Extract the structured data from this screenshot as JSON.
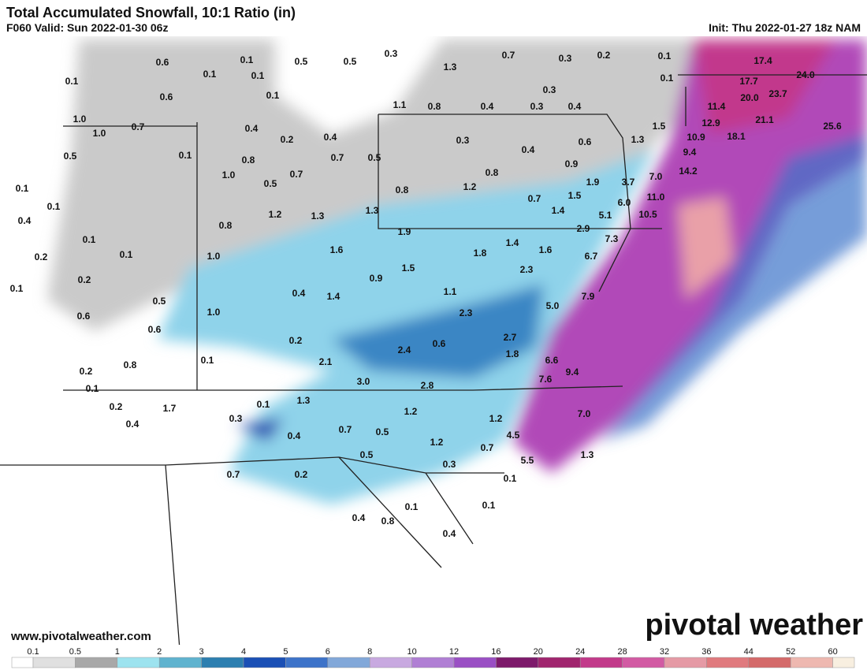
{
  "header": {
    "title": "Total Accumulated Snowfall, 10:1 Ratio (in)",
    "valid": "F060 Valid: Sun 2022-01-30 06z",
    "init": "Init: Thu 2022-01-27 18z NAM"
  },
  "map": {
    "values": [
      "0.6",
      "0.1",
      "0.5",
      "0.5",
      "0.3",
      "0.7",
      "0.3",
      "0.2",
      "0.1",
      "17.4",
      "0.1",
      "0.1",
      "0.1",
      "1.3",
      "0.1",
      "17.7",
      "24.0",
      "0.6",
      "0.1",
      "0.3",
      "20.0",
      "23.7",
      "1.0",
      "0.7",
      "1.0",
      "0.4",
      "1.1",
      "0.8",
      "0.4",
      "0.3",
      "0.4",
      "11.4",
      "0.2",
      "0.4",
      "0.3",
      "0.6",
      "1.5",
      "12.9",
      "21.1",
      "25.6",
      "0.5",
      "0.1",
      "0.8",
      "0.7",
      "0.5",
      "0.4",
      "1.3",
      "10.9",
      "18.1",
      "9.4",
      "1.0",
      "0.5",
      "0.7",
      "0.8",
      "0.9",
      "7.0",
      "14.2",
      "0.1",
      "1.2",
      "1.9",
      "3.7",
      "0.8",
      "1.5",
      "11.0",
      "0.1",
      "6.0",
      "0.7",
      "0.4",
      "1.2",
      "1.3",
      "1.3",
      "1.4",
      "5.1",
      "10.5",
      "0.8",
      "1.9",
      "2.9",
      "7.3",
      "0.1",
      "1.6",
      "1.8",
      "1.4",
      "1.6",
      "6.7",
      "0.2",
      "0.1",
      "1.0",
      "1.5",
      "2.3",
      "0.2",
      "0.9",
      "0.1",
      "0.4",
      "1.1",
      "7.9",
      "0.5",
      "1.4",
      "5.0",
      "0.6",
      "1.0",
      "2.3",
      "0.6",
      "0.2",
      "2.7",
      "0.6",
      "2.4",
      "1.8",
      "0.8",
      "0.1",
      "2.1",
      "6.6",
      "9.4",
      "0.2",
      "7.6",
      "3.0",
      "2.8",
      "0.1",
      "0.2",
      "1.7",
      "0.1",
      "1.3",
      "1.2",
      "7.0",
      "0.4",
      "0.3",
      "1.2",
      "0.7",
      "0.5",
      "0.4",
      "4.5",
      "1.2",
      "0.7",
      "0.5",
      "5.5",
      "1.3",
      "0.3",
      "0.7",
      "0.2",
      "0.1",
      "0.1",
      "0.1",
      "0.4",
      "0.8",
      "0.4"
    ]
  },
  "footer": {
    "url": "www.pivotalweather.com",
    "logo": "pivotal weather"
  },
  "legend": {
    "labels": [
      "0.1",
      "0.5",
      "1",
      "2",
      "3",
      "4",
      "5",
      "6",
      "8",
      "10",
      "12",
      "16",
      "20",
      "24",
      "28",
      "32",
      "36",
      "44",
      "52",
      "60"
    ],
    "colors": [
      "#ffffff",
      "#e0e0e0",
      "#a8a8a8",
      "#9de3ef",
      "#5fb3cf",
      "#2d7fb0",
      "#1a4fb5",
      "#3d73c9",
      "#82a8d9",
      "#c8a9e0",
      "#b07fd4",
      "#9a4fc4",
      "#7d1a6b",
      "#a0256e",
      "#c23a8a",
      "#d25aa3",
      "#e59aa5",
      "#e07a7e",
      "#d46a6a",
      "#eeb8b0",
      "#f8efe0"
    ]
  }
}
